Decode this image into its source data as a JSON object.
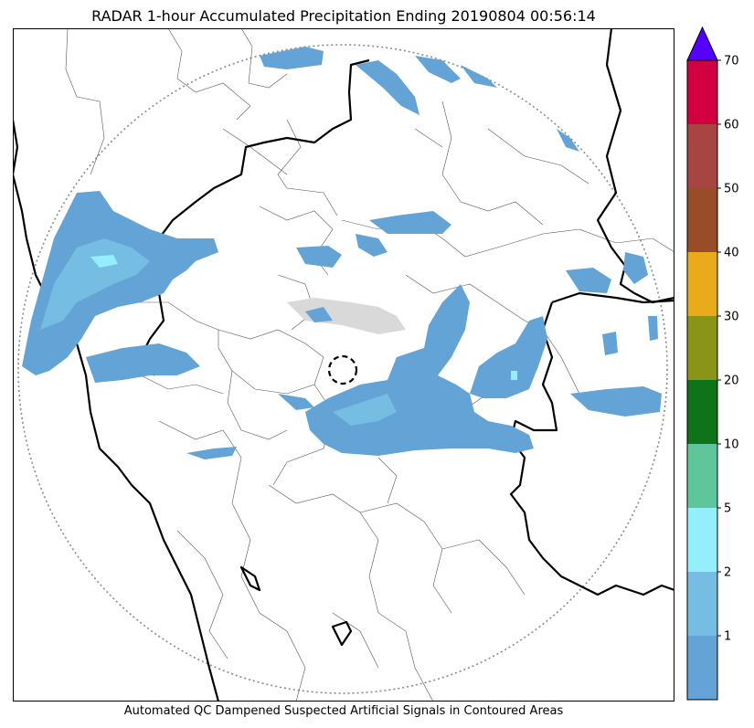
{
  "title": "RADAR 1-hour Accumulated Precipitation Ending 20190804 00:56:14",
  "caption": "Automated QC Dampened Suspected Artificial Signals in Contoured Areas",
  "colorbar": {
    "levels": [
      {
        "color": "#63a3d6"
      },
      {
        "label": "1",
        "color": "#75bde2"
      },
      {
        "label": "2",
        "color": "#95eefc"
      },
      {
        "label": "5",
        "color": "#5fc59a"
      },
      {
        "label": "10",
        "color": "#0f7419"
      },
      {
        "label": "20",
        "color": "#8a9416"
      },
      {
        "label": "30",
        "color": "#e9aa1c"
      },
      {
        "label": "40",
        "color": "#984c27"
      },
      {
        "label": "50",
        "color": "#a74543"
      },
      {
        "label": "60",
        "color": "#d20041"
      }
    ],
    "top_label": "70",
    "extend_color": "#5500ff"
  },
  "map": {
    "precip_colors": {
      "light": "#63a3d6",
      "moderate": "#75bde2",
      "heavy": "#95eefc",
      "qc": "#d9d9d9"
    },
    "boundary_colors": {
      "national": "#000000",
      "regional": "#555555",
      "range_ring": "#8a8a8a"
    }
  }
}
